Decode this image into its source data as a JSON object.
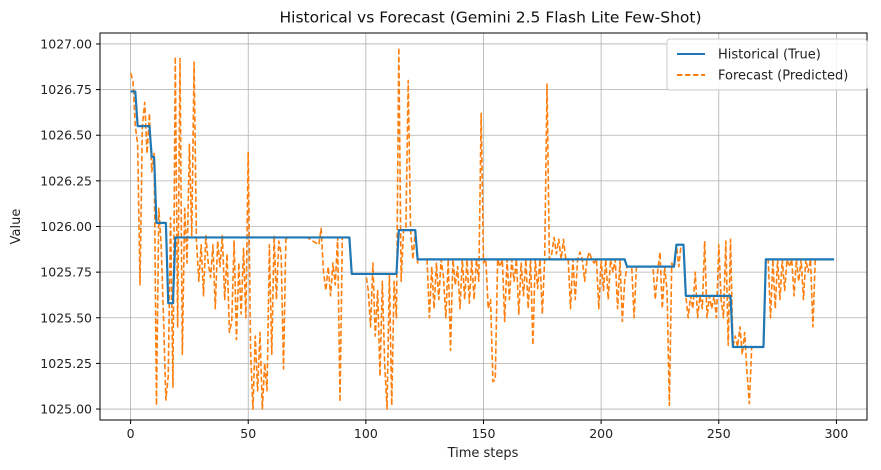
{
  "chart_data": {
    "type": "line",
    "title": "Historical vs Forecast (Gemini 2.5 Flash Lite Few-Shot)",
    "xlabel": "Time steps",
    "ylabel": "Value",
    "xlim": [
      -13,
      313
    ],
    "ylim": [
      1024.94,
      1027.06
    ],
    "xticks": [
      0,
      50,
      100,
      150,
      200,
      250,
      300
    ],
    "yticks": [
      1025.0,
      1025.25,
      1025.5,
      1025.75,
      1026.0,
      1026.25,
      1026.5,
      1026.75,
      1027.0
    ],
    "grid": true,
    "legend_position": "top-right",
    "series": [
      {
        "name": "Historical (True)",
        "color": "#1f77b4",
        "style": "solid",
        "points": [
          [
            0,
            1026.74
          ],
          [
            2,
            1026.74
          ],
          [
            3,
            1026.55
          ],
          [
            8,
            1026.55
          ],
          [
            9,
            1026.38
          ],
          [
            10,
            1026.38
          ],
          [
            11,
            1026.02
          ],
          [
            15,
            1026.02
          ],
          [
            16,
            1025.58
          ],
          [
            18,
            1025.58
          ],
          [
            19,
            1025.94
          ],
          [
            93,
            1025.94
          ],
          [
            94,
            1025.74
          ],
          [
            113,
            1025.74
          ],
          [
            114,
            1025.98
          ],
          [
            121,
            1025.98
          ],
          [
            122,
            1025.82
          ],
          [
            210,
            1025.82
          ],
          [
            211,
            1025.78
          ],
          [
            231,
            1025.78
          ],
          [
            232,
            1025.9
          ],
          [
            235,
            1025.9
          ],
          [
            236,
            1025.62
          ],
          [
            255,
            1025.62
          ],
          [
            256,
            1025.34
          ],
          [
            269,
            1025.34
          ],
          [
            270,
            1025.82
          ],
          [
            299,
            1025.82
          ]
        ]
      },
      {
        "name": "Forecast (Predicted)",
        "color": "#ff7f0e",
        "style": "dashed",
        "points": [
          [
            0,
            1026.84
          ],
          [
            1,
            1026.8
          ],
          [
            2,
            1026.55
          ],
          [
            3,
            1026.45
          ],
          [
            4,
            1025.68
          ],
          [
            5,
            1026.55
          ],
          [
            6,
            1026.68
          ],
          [
            7,
            1026.4
          ],
          [
            8,
            1026.62
          ],
          [
            9,
            1026.3
          ],
          [
            10,
            1026.4
          ],
          [
            11,
            1025.02
          ],
          [
            12,
            1026.1
          ],
          [
            13,
            1025.9
          ],
          [
            14,
            1025.5
          ],
          [
            15,
            1025.05
          ],
          [
            16,
            1025.18
          ],
          [
            17,
            1026.05
          ],
          [
            18,
            1025.12
          ],
          [
            19,
            1026.93
          ],
          [
            20,
            1025.45
          ],
          [
            21,
            1026.92
          ],
          [
            22,
            1025.3
          ],
          [
            23,
            1026.1
          ],
          [
            24,
            1025.8
          ],
          [
            25,
            1026.45
          ],
          [
            26,
            1025.95
          ],
          [
            27,
            1026.9
          ],
          [
            28,
            1025.92
          ],
          [
            29,
            1025.7
          ],
          [
            30,
            1025.9
          ],
          [
            31,
            1025.62
          ],
          [
            32,
            1025.95
          ],
          [
            33,
            1025.8
          ],
          [
            34,
            1025.72
          ],
          [
            35,
            1025.9
          ],
          [
            36,
            1025.55
          ],
          [
            37,
            1025.92
          ],
          [
            38,
            1025.78
          ],
          [
            39,
            1025.95
          ],
          [
            40,
            1025.6
          ],
          [
            41,
            1025.85
          ],
          [
            42,
            1025.42
          ],
          [
            43,
            1025.48
          ],
          [
            44,
            1025.92
          ],
          [
            45,
            1025.38
          ],
          [
            46,
            1025.8
          ],
          [
            47,
            1025.52
          ],
          [
            48,
            1025.88
          ],
          [
            49,
            1025.5
          ],
          [
            50,
            1026.41
          ],
          [
            51,
            1025.32
          ],
          [
            52,
            1025.0
          ],
          [
            53,
            1025.4
          ],
          [
            54,
            1025.1
          ],
          [
            55,
            1025.42
          ],
          [
            56,
            1025.0
          ],
          [
            57,
            1025.25
          ],
          [
            58,
            1025.1
          ],
          [
            59,
            1025.9
          ],
          [
            60,
            1025.3
          ],
          [
            61,
            1025.95
          ],
          [
            62,
            1025.6
          ],
          [
            63,
            1025.92
          ],
          [
            64,
            1025.85
          ],
          [
            65,
            1025.22
          ],
          [
            66,
            1025.93
          ],
          [
            67,
            1025.94
          ],
          [
            70,
            1025.94
          ],
          [
            75,
            1025.94
          ],
          [
            80,
            1025.9
          ],
          [
            81,
            1025.99
          ],
          [
            82,
            1025.75
          ],
          [
            83,
            1025.65
          ],
          [
            84,
            1025.78
          ],
          [
            85,
            1025.62
          ],
          [
            86,
            1025.8
          ],
          [
            87,
            1025.68
          ],
          [
            88,
            1025.94
          ],
          [
            89,
            1025.04
          ],
          [
            90,
            1025.94
          ],
          [
            91,
            1025.94
          ],
          [
            93,
            1025.94
          ],
          [
            94,
            1025.74
          ],
          [
            96,
            1025.74
          ],
          [
            100,
            1025.74
          ],
          [
            101,
            1025.65
          ],
          [
            102,
            1025.45
          ],
          [
            103,
            1025.8
          ],
          [
            104,
            1025.4
          ],
          [
            105,
            1025.65
          ],
          [
            106,
            1025.18
          ],
          [
            107,
            1025.7
          ],
          [
            108,
            1025.25
          ],
          [
            109,
            1025.0
          ],
          [
            110,
            1025.74
          ],
          [
            111,
            1025.02
          ],
          [
            112,
            1025.7
          ],
          [
            113,
            1025.5
          ],
          [
            114,
            1026.98
          ],
          [
            115,
            1025.7
          ],
          [
            116,
            1025.98
          ],
          [
            117,
            1025.98
          ],
          [
            118,
            1026.8
          ],
          [
            119,
            1025.98
          ],
          [
            120,
            1025.82
          ],
          [
            121,
            1025.98
          ],
          [
            122,
            1025.8
          ],
          [
            123,
            1025.82
          ],
          [
            126,
            1025.82
          ],
          [
            127,
            1025.5
          ],
          [
            128,
            1025.78
          ],
          [
            129,
            1025.55
          ],
          [
            130,
            1025.8
          ],
          [
            131,
            1025.6
          ],
          [
            132,
            1025.82
          ],
          [
            133,
            1025.72
          ],
          [
            134,
            1025.5
          ],
          [
            135,
            1025.82
          ],
          [
            136,
            1025.32
          ],
          [
            137,
            1025.82
          ],
          [
            138,
            1025.68
          ],
          [
            139,
            1025.78
          ],
          [
            140,
            1025.55
          ],
          [
            141,
            1025.82
          ],
          [
            142,
            1025.6
          ],
          [
            143,
            1025.82
          ],
          [
            144,
            1025.58
          ],
          [
            145,
            1025.82
          ],
          [
            146,
            1025.6
          ],
          [
            147,
            1025.82
          ],
          [
            148,
            1025.7
          ],
          [
            149,
            1026.62
          ],
          [
            150,
            1025.8
          ],
          [
            151,
            1025.82
          ],
          [
            152,
            1025.55
          ],
          [
            153,
            1025.6
          ],
          [
            154,
            1025.15
          ],
          [
            155,
            1025.16
          ],
          [
            156,
            1025.82
          ],
          [
            157,
            1025.78
          ],
          [
            158,
            1025.82
          ],
          [
            159,
            1025.48
          ],
          [
            160,
            1025.82
          ],
          [
            161,
            1025.6
          ],
          [
            162,
            1025.82
          ],
          [
            163,
            1025.7
          ],
          [
            164,
            1025.82
          ],
          [
            165,
            1025.52
          ],
          [
            166,
            1025.8
          ],
          [
            167,
            1025.62
          ],
          [
            168,
            1025.82
          ],
          [
            169,
            1025.55
          ],
          [
            170,
            1025.82
          ],
          [
            171,
            1025.35
          ],
          [
            172,
            1025.82
          ],
          [
            173,
            1025.66
          ],
          [
            174,
            1025.82
          ],
          [
            175,
            1025.52
          ],
          [
            176,
            1025.82
          ],
          [
            177,
            1026.78
          ],
          [
            178,
            1025.82
          ],
          [
            179,
            1025.85
          ],
          [
            180,
            1025.94
          ],
          [
            181,
            1025.85
          ],
          [
            182,
            1025.93
          ],
          [
            183,
            1025.82
          ],
          [
            184,
            1025.93
          ],
          [
            185,
            1025.82
          ],
          [
            186,
            1025.82
          ],
          [
            187,
            1025.55
          ],
          [
            188,
            1025.82
          ],
          [
            189,
            1025.6
          ],
          [
            190,
            1025.82
          ],
          [
            191,
            1025.86
          ],
          [
            192,
            1025.82
          ],
          [
            193,
            1025.7
          ],
          [
            194,
            1025.82
          ],
          [
            195,
            1025.86
          ],
          [
            196,
            1025.82
          ],
          [
            197,
            1025.8
          ],
          [
            198,
            1025.82
          ],
          [
            199,
            1025.55
          ],
          [
            200,
            1025.82
          ],
          [
            201,
            1025.65
          ],
          [
            202,
            1025.82
          ],
          [
            203,
            1025.6
          ],
          [
            204,
            1025.82
          ],
          [
            205,
            1025.75
          ],
          [
            206,
            1025.82
          ],
          [
            207,
            1025.55
          ],
          [
            208,
            1025.82
          ],
          [
            209,
            1025.48
          ],
          [
            210,
            1025.7
          ],
          [
            211,
            1025.78
          ],
          [
            213,
            1025.78
          ],
          [
            214,
            1025.5
          ],
          [
            215,
            1025.78
          ],
          [
            216,
            1025.78
          ],
          [
            220,
            1025.78
          ],
          [
            222,
            1025.78
          ],
          [
            223,
            1025.6
          ],
          [
            224,
            1025.75
          ],
          [
            225,
            1025.86
          ],
          [
            226,
            1025.55
          ],
          [
            227,
            1025.78
          ],
          [
            228,
            1025.65
          ],
          [
            229,
            1025.02
          ],
          [
            230,
            1025.8
          ],
          [
            231,
            1025.78
          ],
          [
            232,
            1025.9
          ],
          [
            233,
            1025.78
          ],
          [
            234,
            1025.9
          ],
          [
            235,
            1025.9
          ],
          [
            236,
            1025.62
          ],
          [
            237,
            1025.5
          ],
          [
            238,
            1025.62
          ],
          [
            239,
            1025.55
          ],
          [
            240,
            1025.75
          ],
          [
            241,
            1025.5
          ],
          [
            242,
            1025.62
          ],
          [
            243,
            1025.55
          ],
          [
            244,
            1025.92
          ],
          [
            245,
            1025.5
          ],
          [
            246,
            1025.62
          ],
          [
            247,
            1025.55
          ],
          [
            248,
            1025.62
          ],
          [
            249,
            1025.5
          ],
          [
            250,
            1025.9
          ],
          [
            251,
            1025.6
          ],
          [
            252,
            1025.5
          ],
          [
            253,
            1025.92
          ],
          [
            254,
            1025.35
          ],
          [
            255,
            1025.93
          ],
          [
            256,
            1025.34
          ],
          [
            257,
            1025.4
          ],
          [
            258,
            1025.34
          ],
          [
            259,
            1025.45
          ],
          [
            260,
            1025.3
          ],
          [
            261,
            1025.42
          ],
          [
            262,
            1025.2
          ],
          [
            263,
            1025.03
          ],
          [
            264,
            1025.34
          ],
          [
            265,
            1025.34
          ],
          [
            269,
            1025.34
          ],
          [
            270,
            1025.82
          ],
          [
            271,
            1025.82
          ],
          [
            272,
            1025.5
          ],
          [
            273,
            1025.82
          ],
          [
            274,
            1025.55
          ],
          [
            275,
            1025.82
          ],
          [
            276,
            1025.6
          ],
          [
            277,
            1025.82
          ],
          [
            278,
            1025.65
          ],
          [
            279,
            1025.82
          ],
          [
            280,
            1025.78
          ],
          [
            281,
            1025.82
          ],
          [
            282,
            1025.62
          ],
          [
            283,
            1025.82
          ],
          [
            284,
            1025.7
          ],
          [
            285,
            1025.82
          ],
          [
            286,
            1025.6
          ],
          [
            287,
            1025.82
          ],
          [
            288,
            1025.75
          ],
          [
            289,
            1025.82
          ],
          [
            290,
            1025.45
          ],
          [
            291,
            1025.82
          ],
          [
            292,
            1025.82
          ],
          [
            299,
            1025.82
          ]
        ]
      }
    ]
  }
}
